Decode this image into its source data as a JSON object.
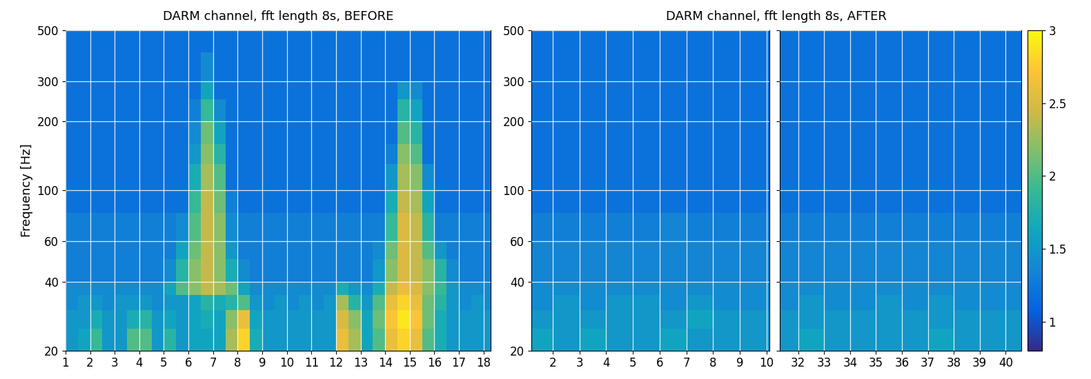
{
  "chart_data": [
    {
      "type": "heatmap",
      "title": "DARM channel, fft length 8s, BEFORE",
      "y_label": "Frequency [Hz]",
      "log": "y",
      "grid": true,
      "xlim": [
        1,
        18.3
      ],
      "xticks": [
        1,
        2,
        3,
        4,
        5,
        6,
        7,
        8,
        9,
        10,
        11,
        12,
        13,
        14,
        15,
        16,
        17,
        18
      ],
      "ylim": [
        20,
        500
      ],
      "yticks": [
        20,
        40,
        60,
        100,
        200,
        300,
        500
      ],
      "x_edges": [
        1,
        1.5,
        2,
        2.5,
        3,
        3.5,
        4,
        4.5,
        5,
        5.5,
        6,
        6.5,
        7,
        7.5,
        8,
        8.5,
        9,
        9.5,
        10,
        10.5,
        11,
        11.5,
        12,
        12.5,
        13,
        13.5,
        14,
        14.5,
        15,
        15.5,
        16,
        16.5,
        17,
        17.5,
        18,
        18.5
      ],
      "y_edges": [
        20,
        25,
        30,
        35,
        40,
        50,
        60,
        80,
        100,
        130,
        160,
        200,
        250,
        300,
        400,
        500
      ],
      "cells": [
        [
          1.5,
          1.6,
          1.9,
          1.5,
          1.5,
          2.0,
          2.0,
          1.5,
          1.8,
          1.5,
          1.6,
          1.6,
          1.6,
          2.3,
          2.8,
          1.7,
          1.5,
          1.5,
          1.5,
          1.5,
          1.5,
          1.5,
          2.6,
          2.3,
          1.6,
          2.0,
          2.6,
          2.8,
          2.6,
          2.0,
          1.7,
          1.5,
          1.5,
          1.5,
          1.5
        ],
        [
          1.5,
          1.5,
          1.7,
          1.5,
          1.5,
          1.7,
          1.8,
          1.5,
          1.6,
          1.5,
          1.6,
          1.7,
          1.6,
          2.2,
          2.6,
          1.6,
          1.5,
          1.5,
          1.5,
          1.5,
          1.5,
          1.5,
          2.5,
          2.2,
          1.6,
          2.1,
          2.7,
          2.9,
          2.7,
          2.1,
          1.7,
          1.5,
          1.5,
          1.5,
          1.5
        ],
        [
          1.4,
          1.5,
          1.5,
          1.4,
          1.5,
          1.5,
          1.5,
          1.4,
          1.5,
          1.5,
          1.6,
          1.8,
          1.7,
          1.8,
          2.0,
          1.5,
          1.4,
          1.5,
          1.4,
          1.5,
          1.4,
          1.5,
          2.3,
          1.8,
          1.5,
          2.0,
          2.6,
          2.8,
          2.6,
          2.1,
          1.8,
          1.5,
          1.4,
          1.5,
          1.4
        ],
        [
          1.4,
          1.4,
          1.4,
          1.4,
          1.4,
          1.4,
          1.4,
          1.4,
          1.6,
          2.0,
          2.2,
          2.4,
          2.3,
          2.1,
          1.6,
          1.4,
          1.4,
          1.4,
          1.4,
          1.4,
          1.4,
          1.4,
          1.7,
          1.5,
          1.4,
          1.7,
          2.4,
          2.6,
          2.5,
          2.2,
          1.9,
          1.5,
          1.4,
          1.4,
          1.4
        ],
        [
          1.3,
          1.3,
          1.3,
          1.3,
          1.3,
          1.3,
          1.3,
          1.3,
          1.4,
          1.8,
          2.2,
          2.4,
          2.2,
          1.7,
          1.4,
          1.3,
          1.3,
          1.3,
          1.3,
          1.3,
          1.3,
          1.3,
          1.3,
          1.3,
          1.3,
          1.5,
          2.2,
          2.5,
          2.4,
          2.2,
          1.8,
          1.4,
          1.3,
          1.3,
          1.3
        ],
        [
          1.3,
          1.3,
          1.3,
          1.3,
          1.3,
          1.3,
          1.3,
          1.3,
          1.3,
          1.6,
          2.1,
          2.4,
          2.2,
          1.5,
          1.3,
          1.3,
          1.3,
          1.3,
          1.3,
          1.3,
          1.3,
          1.3,
          1.3,
          1.3,
          1.3,
          1.4,
          2.1,
          2.5,
          2.4,
          2.0,
          1.5,
          1.3,
          1.3,
          1.3,
          1.3
        ],
        [
          1.3,
          1.3,
          1.3,
          1.3,
          1.3,
          1.3,
          1.3,
          1.3,
          1.3,
          1.4,
          2.0,
          2.4,
          2.2,
          1.4,
          1.3,
          1.3,
          1.3,
          1.3,
          1.3,
          1.3,
          1.3,
          1.3,
          1.3,
          1.3,
          1.3,
          1.3,
          1.9,
          2.5,
          2.4,
          1.8,
          1.3,
          1.3,
          1.3,
          1.3,
          1.3
        ],
        [
          1.2,
          1.2,
          1.2,
          1.2,
          1.2,
          1.2,
          1.2,
          1.2,
          1.2,
          1.2,
          1.9,
          2.4,
          2.1,
          1.3,
          1.2,
          1.2,
          1.2,
          1.2,
          1.2,
          1.2,
          1.2,
          1.2,
          1.2,
          1.2,
          1.2,
          1.2,
          1.7,
          2.4,
          2.3,
          1.6,
          1.2,
          1.2,
          1.2,
          1.2,
          1.2
        ],
        [
          1.2,
          1.2,
          1.2,
          1.2,
          1.2,
          1.2,
          1.2,
          1.2,
          1.2,
          1.2,
          1.7,
          2.3,
          2.0,
          1.2,
          1.2,
          1.2,
          1.2,
          1.2,
          1.2,
          1.2,
          1.2,
          1.2,
          1.2,
          1.2,
          1.2,
          1.2,
          1.5,
          2.3,
          2.2,
          1.4,
          1.2,
          1.2,
          1.2,
          1.2,
          1.2
        ],
        [
          1.2,
          1.2,
          1.2,
          1.2,
          1.2,
          1.2,
          1.2,
          1.2,
          1.2,
          1.2,
          1.5,
          2.2,
          1.8,
          1.2,
          1.2,
          1.2,
          1.2,
          1.2,
          1.2,
          1.2,
          1.2,
          1.2,
          1.2,
          1.2,
          1.2,
          1.2,
          1.3,
          2.2,
          2.0,
          1.2,
          1.2,
          1.2,
          1.2,
          1.2,
          1.2
        ],
        [
          1.2,
          1.2,
          1.2,
          1.2,
          1.2,
          1.2,
          1.2,
          1.2,
          1.2,
          1.2,
          1.4,
          2.1,
          1.6,
          1.2,
          1.2,
          1.2,
          1.2,
          1.2,
          1.2,
          1.2,
          1.2,
          1.2,
          1.2,
          1.2,
          1.2,
          1.2,
          1.2,
          2.0,
          1.8,
          1.2,
          1.2,
          1.2,
          1.2,
          1.2,
          1.2
        ],
        [
          1.2,
          1.2,
          1.2,
          1.2,
          1.2,
          1.2,
          1.2,
          1.2,
          1.2,
          1.2,
          1.3,
          1.9,
          1.4,
          1.2,
          1.2,
          1.2,
          1.2,
          1.2,
          1.2,
          1.2,
          1.2,
          1.2,
          1.2,
          1.2,
          1.2,
          1.2,
          1.2,
          1.8,
          1.6,
          1.2,
          1.2,
          1.2,
          1.2,
          1.2,
          1.2
        ],
        [
          1.2,
          1.2,
          1.2,
          1.2,
          1.2,
          1.2,
          1.2,
          1.2,
          1.2,
          1.2,
          1.2,
          1.6,
          1.2,
          1.2,
          1.2,
          1.2,
          1.2,
          1.2,
          1.2,
          1.2,
          1.2,
          1.2,
          1.2,
          1.2,
          1.2,
          1.2,
          1.2,
          1.5,
          1.4,
          1.2,
          1.2,
          1.2,
          1.2,
          1.2,
          1.2
        ],
        [
          1.2,
          1.2,
          1.2,
          1.2,
          1.2,
          1.2,
          1.2,
          1.2,
          1.2,
          1.2,
          1.2,
          1.4,
          1.2,
          1.2,
          1.2,
          1.2,
          1.2,
          1.2,
          1.2,
          1.2,
          1.2,
          1.2,
          1.2,
          1.2,
          1.2,
          1.2,
          1.2,
          1.2,
          1.2,
          1.2,
          1.2,
          1.2,
          1.2,
          1.2,
          1.2
        ],
        [
          1.2,
          1.2,
          1.2,
          1.2,
          1.2,
          1.2,
          1.2,
          1.2,
          1.2,
          1.2,
          1.2,
          1.2,
          1.2,
          1.2,
          1.2,
          1.2,
          1.2,
          1.2,
          1.2,
          1.2,
          1.2,
          1.2,
          1.2,
          1.2,
          1.2,
          1.2,
          1.2,
          1.2,
          1.2,
          1.2,
          1.2,
          1.2,
          1.2,
          1.2,
          1.2
        ]
      ]
    },
    {
      "type": "heatmap",
      "title": "DARM channel, fft length 8s, AFTER",
      "log": "y",
      "grid": true,
      "xlim": [
        1.2,
        10.1
      ],
      "xticks": [
        2,
        3,
        4,
        5,
        6,
        7,
        8,
        9,
        10
      ],
      "ylim": [
        20,
        500
      ],
      "yticks": [
        20,
        40,
        60,
        100,
        200,
        300,
        500
      ],
      "x_edges": [
        1.2,
        2,
        3,
        4,
        5,
        6,
        7,
        8,
        9,
        10.1
      ],
      "y_edges": [
        20,
        25,
        30,
        35,
        40,
        50,
        60,
        80,
        100,
        130,
        160,
        200,
        250,
        300,
        400,
        500
      ],
      "cells": [
        [
          1.6,
          1.5,
          1.6,
          1.5,
          1.5,
          1.6,
          1.5,
          1.5,
          1.5
        ],
        [
          1.5,
          1.5,
          1.5,
          1.5,
          1.5,
          1.5,
          1.6,
          1.5,
          1.5
        ],
        [
          1.4,
          1.5,
          1.4,
          1.5,
          1.5,
          1.4,
          1.5,
          1.4,
          1.4
        ],
        [
          1.4,
          1.4,
          1.4,
          1.4,
          1.4,
          1.4,
          1.4,
          1.4,
          1.4
        ],
        [
          1.35,
          1.35,
          1.35,
          1.35,
          1.35,
          1.35,
          1.35,
          1.35,
          1.35
        ],
        [
          1.35,
          1.35,
          1.35,
          1.35,
          1.35,
          1.35,
          1.35,
          1.35,
          1.35
        ],
        [
          1.3,
          1.3,
          1.3,
          1.3,
          1.3,
          1.35,
          1.3,
          1.3,
          1.3
        ],
        [
          1.2,
          1.2,
          1.2,
          1.2,
          1.2,
          1.2,
          1.2,
          1.2,
          1.2
        ],
        [
          1.2,
          1.2,
          1.2,
          1.2,
          1.2,
          1.2,
          1.2,
          1.2,
          1.2
        ],
        [
          1.2,
          1.2,
          1.2,
          1.2,
          1.2,
          1.2,
          1.2,
          1.2,
          1.2
        ],
        [
          1.2,
          1.2,
          1.2,
          1.2,
          1.2,
          1.2,
          1.2,
          1.2,
          1.2
        ],
        [
          1.2,
          1.2,
          1.2,
          1.2,
          1.2,
          1.2,
          1.2,
          1.2,
          1.2
        ],
        [
          1.2,
          1.2,
          1.2,
          1.2,
          1.2,
          1.2,
          1.2,
          1.2,
          1.2
        ],
        [
          1.2,
          1.2,
          1.2,
          1.2,
          1.2,
          1.2,
          1.2,
          1.2,
          1.2
        ],
        [
          1.2,
          1.2,
          1.2,
          1.2,
          1.2,
          1.2,
          1.2,
          1.2,
          1.2
        ]
      ]
    },
    {
      "type": "heatmap",
      "log": "y",
      "grid": true,
      "tick_labels": "x",
      "xlim": [
        31.3,
        40.6
      ],
      "xticks": [
        32,
        33,
        34,
        35,
        36,
        37,
        38,
        39,
        40
      ],
      "ylim": [
        20,
        500
      ],
      "yticks": [
        20,
        40,
        60,
        100,
        200,
        300,
        500
      ],
      "x_edges": [
        31.3,
        32,
        33,
        34,
        35,
        36,
        37,
        38,
        39,
        40,
        40.6
      ],
      "y_edges": [
        20,
        25,
        30,
        35,
        40,
        50,
        60,
        80,
        100,
        130,
        160,
        200,
        250,
        300,
        400,
        500
      ],
      "cells": [
        [
          1.5,
          1.6,
          1.5,
          1.5,
          1.5,
          1.5,
          1.6,
          1.5,
          1.5,
          1.5
        ],
        [
          1.5,
          1.5,
          1.5,
          1.5,
          1.5,
          1.5,
          1.5,
          1.5,
          1.5,
          1.5
        ],
        [
          1.4,
          1.5,
          1.4,
          1.4,
          1.5,
          1.4,
          1.5,
          1.4,
          1.4,
          1.4
        ],
        [
          1.4,
          1.4,
          1.4,
          1.4,
          1.4,
          1.4,
          1.4,
          1.4,
          1.4,
          1.4
        ],
        [
          1.35,
          1.35,
          1.35,
          1.35,
          1.35,
          1.35,
          1.35,
          1.35,
          1.35,
          1.35
        ],
        [
          1.35,
          1.35,
          1.35,
          1.35,
          1.35,
          1.35,
          1.35,
          1.35,
          1.35,
          1.35
        ],
        [
          1.3,
          1.3,
          1.3,
          1.3,
          1.3,
          1.3,
          1.3,
          1.3,
          1.3,
          1.3
        ],
        [
          1.2,
          1.2,
          1.2,
          1.2,
          1.2,
          1.2,
          1.2,
          1.2,
          1.2,
          1.2
        ],
        [
          1.2,
          1.2,
          1.2,
          1.2,
          1.2,
          1.2,
          1.2,
          1.2,
          1.2,
          1.2
        ],
        [
          1.2,
          1.2,
          1.2,
          1.2,
          1.2,
          1.2,
          1.2,
          1.2,
          1.2,
          1.2
        ],
        [
          1.2,
          1.2,
          1.2,
          1.2,
          1.2,
          1.2,
          1.2,
          1.2,
          1.2,
          1.2
        ],
        [
          1.2,
          1.2,
          1.2,
          1.2,
          1.2,
          1.2,
          1.2,
          1.2,
          1.2,
          1.2
        ],
        [
          1.2,
          1.2,
          1.2,
          1.2,
          1.2,
          1.2,
          1.2,
          1.2,
          1.2,
          1.2
        ],
        [
          1.2,
          1.2,
          1.2,
          1.2,
          1.2,
          1.2,
          1.2,
          1.2,
          1.2,
          1.2
        ],
        [
          1.2,
          1.2,
          1.2,
          1.2,
          1.2,
          1.2,
          1.2,
          1.2,
          1.2,
          1.2
        ]
      ],
      "colorbar": {
        "range": [
          0.8,
          3
        ],
        "ticks": [
          1,
          1.5,
          2,
          2.5,
          3
        ]
      }
    }
  ]
}
